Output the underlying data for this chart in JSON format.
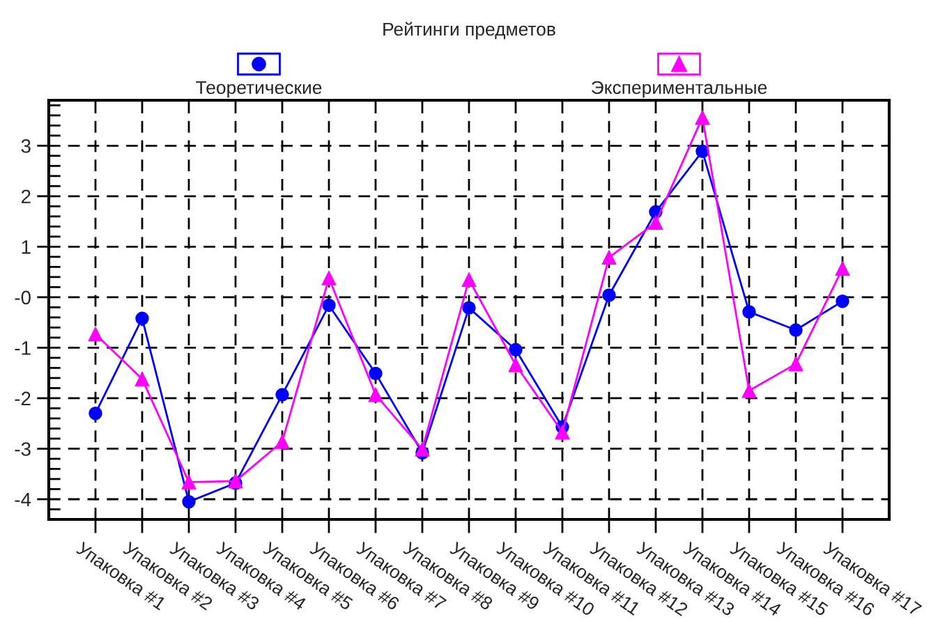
{
  "chart_data": {
    "type": "line",
    "title": "Рейтинги предметов",
    "categories": [
      "Упаковка #1",
      "Упаковка #2",
      "Упаковка #3",
      "Упаковка #4",
      "Упаковка #5",
      "Упаковка #6",
      "Упаковка #7",
      "Упаковка #8",
      "Упаковка #9",
      "Упаковка #10",
      "Упаковка #11",
      "Упаковка #12",
      "Упаковка #13",
      "Упаковка #14",
      "Упаковка #15",
      "Упаковка #16",
      "Упаковка #17"
    ],
    "series": [
      {
        "name": "Теоретические",
        "color": "#0000ff",
        "marker": "circle",
        "values": [
          -2.3,
          -0.42,
          -4.05,
          -3.68,
          -1.93,
          -0.16,
          -1.51,
          -3.08,
          -0.21,
          -1.04,
          -2.57,
          0.04,
          1.69,
          2.89,
          -0.29,
          -0.65,
          -0.08
        ]
      },
      {
        "name": "Экспериментальные",
        "color": "#ff00ff",
        "marker": "triangle",
        "values": [
          -0.73,
          -1.62,
          -3.66,
          -3.64,
          -2.86,
          0.38,
          -1.93,
          -3.01,
          0.35,
          -1.34,
          -2.67,
          0.79,
          1.48,
          3.56,
          -1.85,
          -1.32,
          0.57
        ]
      }
    ],
    "ylim": [
      -4.4,
      3.9
    ],
    "yticks": [
      -4,
      -3,
      -2,
      -1,
      {
        "value": 0,
        "label": "-0"
      },
      1,
      2,
      3,
      {
        "value": -4.2,
        "label": null
      },
      {
        "value": -3.8,
        "label": null
      },
      {
        "value": -3.6,
        "label": null
      },
      {
        "value": -3.4,
        "label": null
      },
      {
        "value": -3.2,
        "label": null
      },
      {
        "value": -2.8,
        "label": null
      },
      {
        "value": -2.6,
        "label": null
      },
      {
        "value": -2.4,
        "label": null
      },
      {
        "value": -2.2,
        "label": null
      },
      {
        "value": -1.8,
        "label": null
      },
      {
        "value": -1.6,
        "label": null
      },
      {
        "value": -1.4,
        "label": null
      },
      {
        "value": -1.2,
        "label": null
      },
      {
        "value": -0.8,
        "label": null
      },
      {
        "value": -0.6,
        "label": null
      },
      {
        "value": -0.4,
        "label": null
      },
      {
        "value": -0.2,
        "label": null
      },
      {
        "value": 0.2,
        "label": null
      },
      {
        "value": 0.4,
        "label": null
      },
      {
        "value": 0.6,
        "label": null
      },
      {
        "value": 0.8,
        "label": null
      },
      {
        "value": 1.2,
        "label": null
      },
      {
        "value": 1.4,
        "label": null
      },
      {
        "value": 1.6,
        "label": null
      },
      {
        "value": 1.8,
        "label": null
      },
      {
        "value": 2.2,
        "label": null
      },
      {
        "value": 2.4,
        "label": null
      },
      {
        "value": 2.6,
        "label": null
      },
      {
        "value": 2.8,
        "label": null
      },
      {
        "value": 3.2,
        "label": null
      },
      {
        "value": 3.4,
        "label": null
      },
      {
        "value": 3.6,
        "label": null
      },
      {
        "value": 3.8,
        "label": null
      }
    ],
    "grid": true,
    "legend": "top",
    "line_style": "solid"
  }
}
